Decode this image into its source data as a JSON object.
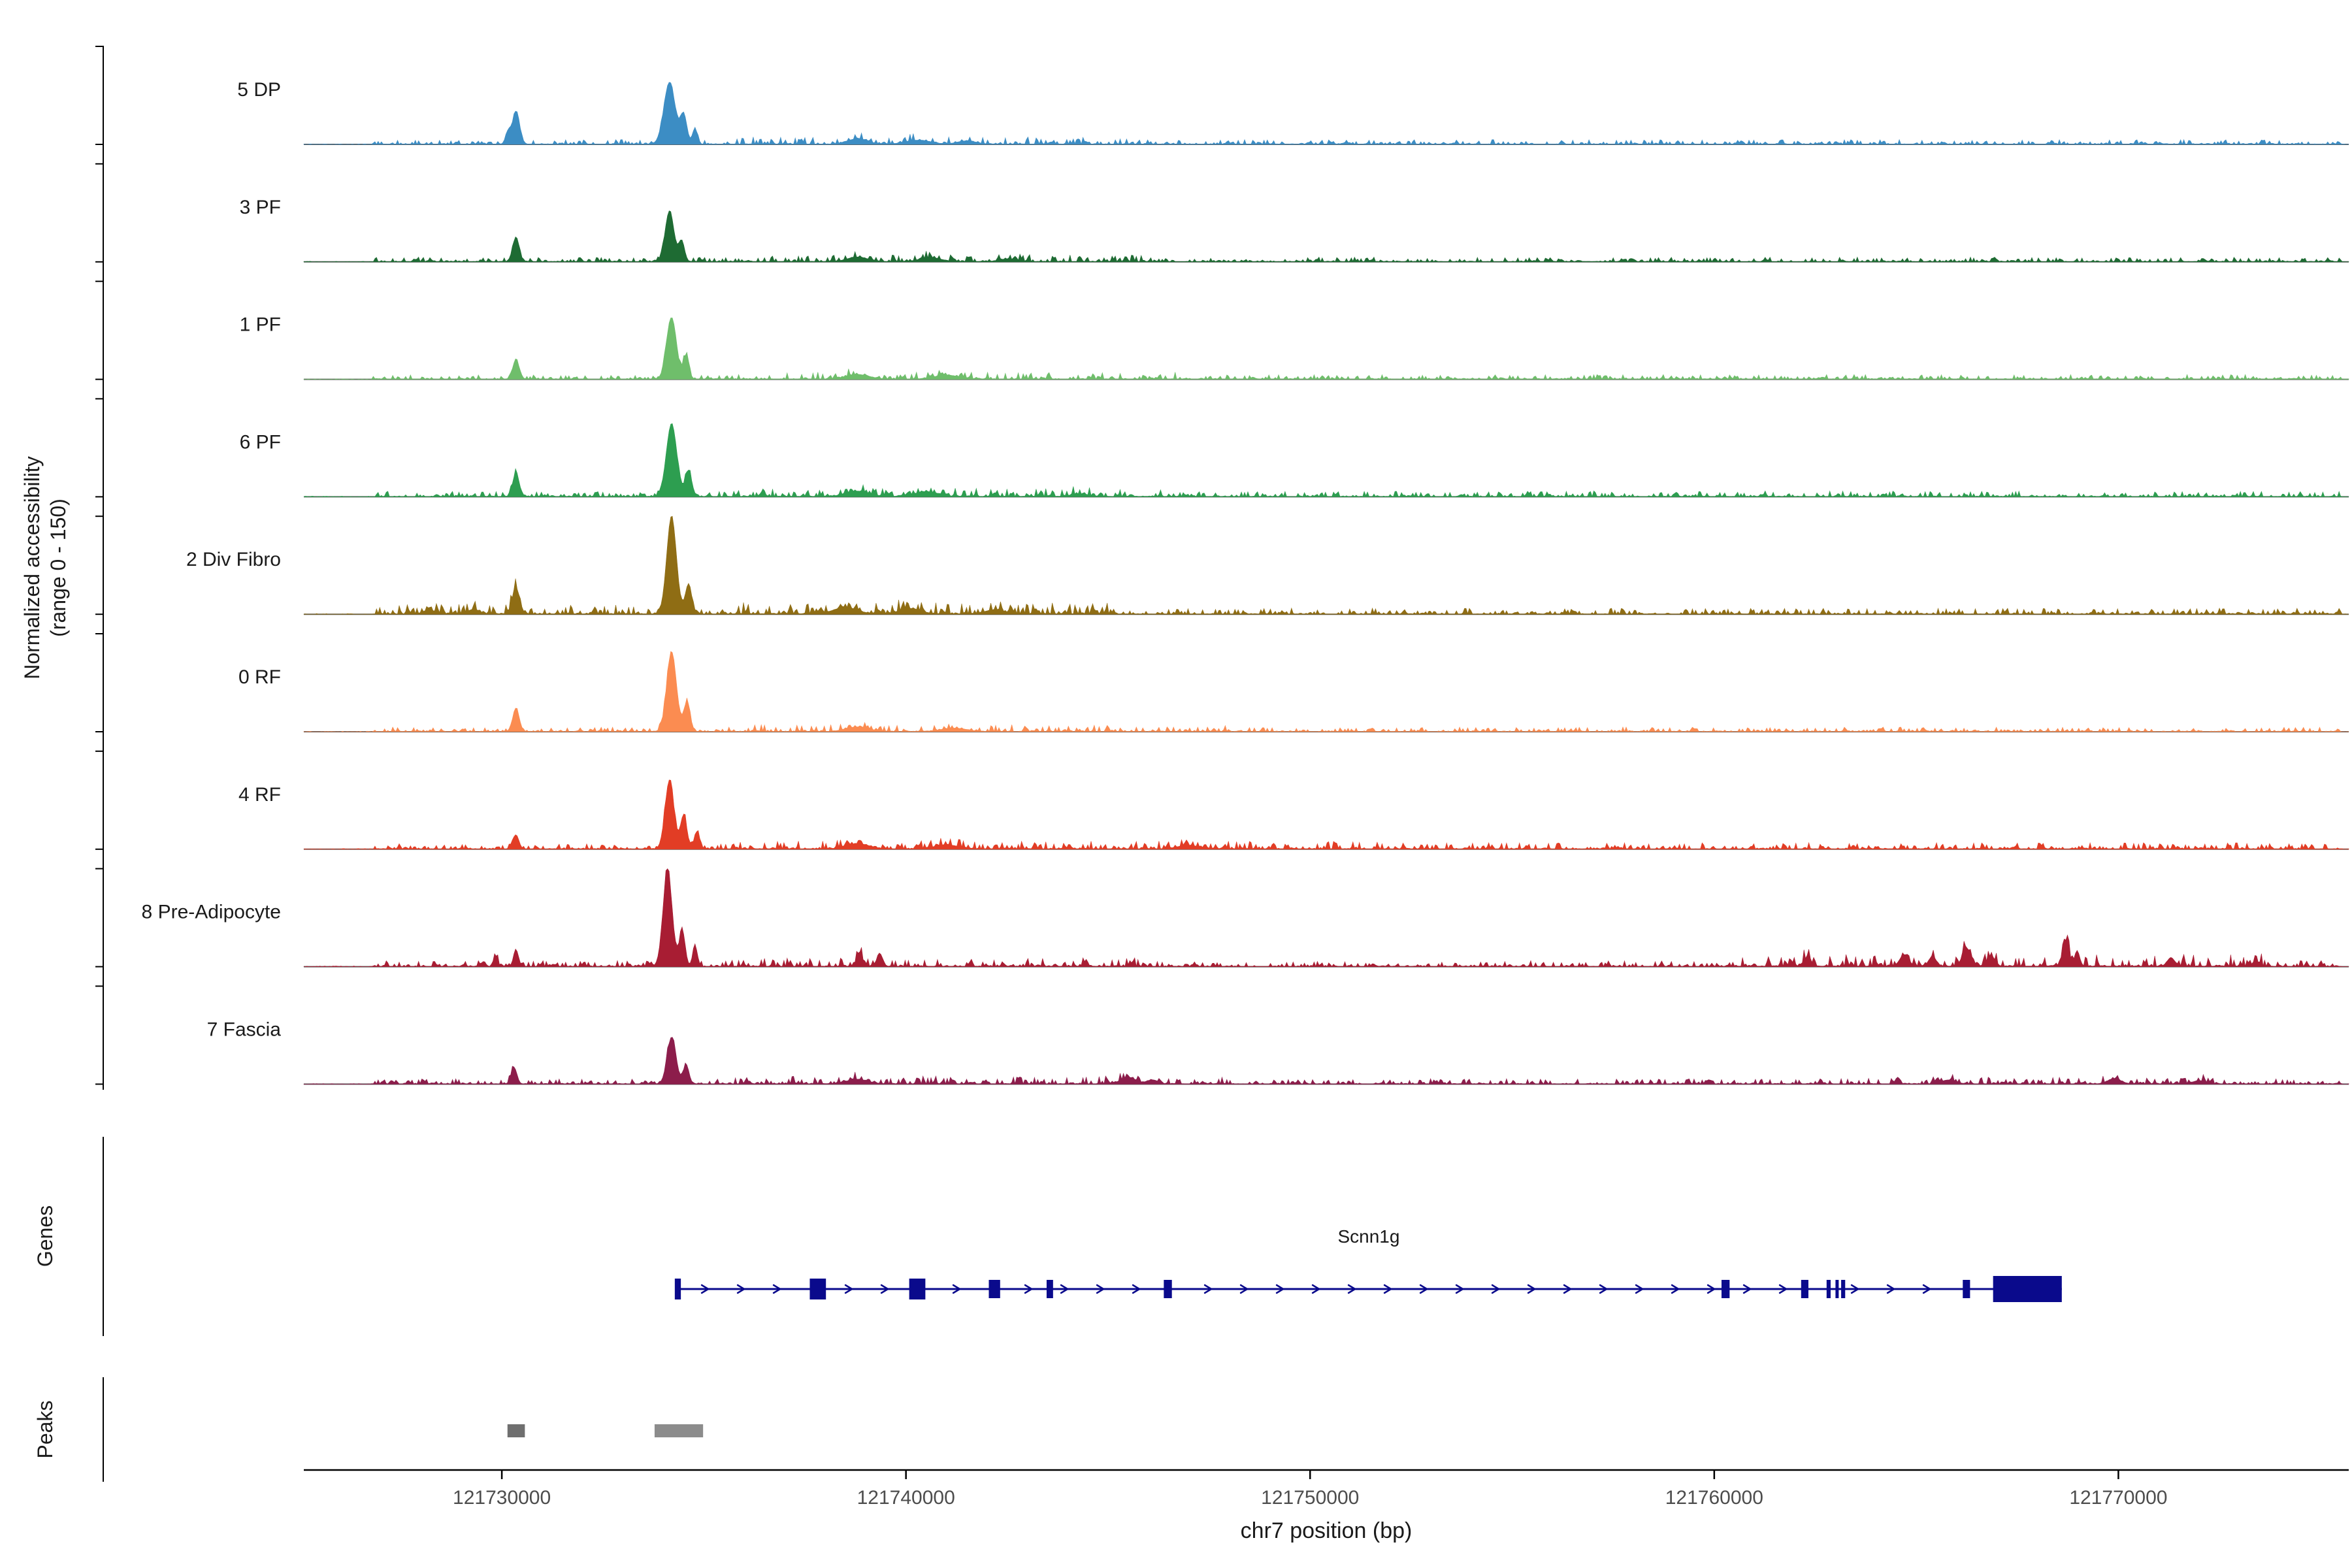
{
  "figure": {
    "background": "#ffffff",
    "axis_color": "#000000",
    "baseline_color": "#5a5a5a",
    "tick_label_color": "#4d4d4d",
    "label_color": "#1a1a1a"
  },
  "chart_data": {
    "type": "area",
    "subtype": "genome-coverage-tracks",
    "region": "chr7:121725100-121775700",
    "xlim": [
      121725100,
      121775700
    ],
    "x_ticks": [
      121730000,
      121740000,
      121750000,
      121760000,
      121770000
    ],
    "xlabel": "chr7 position (bp)",
    "ylabel_line1": "Normalized accessibility",
    "ylabel_line2": "(range 0 - 150)",
    "y_range": [
      0,
      150
    ],
    "noise_start": 121726800,
    "noise_end": 121775500,
    "tracks": [
      {
        "label": "5 DP",
        "color": "#3C8DC4",
        "noise": {
          "level": 7,
          "regions": [
            [
              121735500,
              121745500,
              1.6
            ]
          ]
        },
        "peaks": [
          [
            121730150,
            60,
            18
          ],
          [
            121730350,
            90,
            50
          ],
          [
            121734150,
            140,
            95
          ],
          [
            121734500,
            80,
            45
          ],
          [
            121734780,
            60,
            24
          ],
          [
            121738800,
            250,
            8
          ],
          [
            121740300,
            300,
            6
          ],
          [
            121741500,
            220,
            5
          ]
        ]
      },
      {
        "label": "3 PF",
        "color": "#1E6B33",
        "noise": {
          "level": 7,
          "regions": [
            [
              121735500,
              121746000,
              1.5
            ]
          ]
        },
        "peaks": [
          [
            121730350,
            80,
            38
          ],
          [
            121734150,
            110,
            78
          ],
          [
            121734450,
            70,
            32
          ],
          [
            121738800,
            250,
            7
          ],
          [
            121740600,
            260,
            6
          ],
          [
            121742500,
            200,
            4
          ]
        ]
      },
      {
        "label": "1 PF",
        "color": "#6FBE6B",
        "noise": {
          "level": 7,
          "regions": [
            [
              121735500,
              121747000,
              1.5
            ]
          ]
        },
        "peaks": [
          [
            121730350,
            80,
            30
          ],
          [
            121734200,
            120,
            95
          ],
          [
            121734560,
            70,
            36
          ],
          [
            121738800,
            280,
            7
          ],
          [
            121741000,
            300,
            6
          ]
        ]
      },
      {
        "label": "6 PF",
        "color": "#2D9E50",
        "noise": {
          "level": 8,
          "regions": [
            [
              121735500,
              121747000,
              1.6
            ],
            [
              121755000,
              121770000,
              1.1
            ]
          ]
        },
        "peaks": [
          [
            121730350,
            80,
            36
          ],
          [
            121734200,
            130,
            112
          ],
          [
            121734620,
            80,
            40
          ],
          [
            121738800,
            280,
            8
          ],
          [
            121740500,
            300,
            7
          ],
          [
            121744300,
            220,
            4
          ]
        ]
      },
      {
        "label": "2 Div Fibro",
        "color": "#8F6D14",
        "noise": {
          "level": 9,
          "regions": [
            [
              121726800,
              121733500,
              1.6
            ],
            [
              121735500,
              121745000,
              1.9
            ]
          ]
        },
        "peaks": [
          [
            121728200,
            140,
            6
          ],
          [
            121729300,
            140,
            7
          ],
          [
            121730350,
            90,
            40
          ],
          [
            121734200,
            120,
            150
          ],
          [
            121734620,
            80,
            46
          ],
          [
            121738500,
            280,
            10
          ],
          [
            121740100,
            260,
            8
          ],
          [
            121742200,
            240,
            6
          ]
        ]
      },
      {
        "label": "0 RF",
        "color": "#FB8C51",
        "noise": {
          "level": 7,
          "regions": [
            [
              121735500,
              121748000,
              1.5
            ]
          ]
        },
        "peaks": [
          [
            121730350,
            80,
            36
          ],
          [
            121734200,
            120,
            122
          ],
          [
            121734580,
            80,
            44
          ],
          [
            121738800,
            280,
            7
          ],
          [
            121741200,
            300,
            5
          ]
        ]
      },
      {
        "label": "4 RF",
        "color": "#E23D25",
        "noise": {
          "level": 8,
          "regions": [
            [
              121735500,
              121752000,
              1.5
            ],
            [
              121752000,
              121775000,
              1.2
            ]
          ]
        },
        "peaks": [
          [
            121730350,
            70,
            22
          ],
          [
            121734150,
            110,
            106
          ],
          [
            121734500,
            80,
            52
          ],
          [
            121734820,
            60,
            26
          ],
          [
            121738800,
            280,
            8
          ],
          [
            121741000,
            300,
            6
          ],
          [
            121747000,
            280,
            5
          ]
        ]
      },
      {
        "label": "8 Pre-Adipocyte",
        "color": "#A81D33",
        "noise": {
          "level": 9,
          "regions": [
            [
              121735500,
              121746000,
              1.5
            ],
            [
              121760500,
              121773800,
              2.0
            ]
          ]
        },
        "peaks": [
          [
            121729850,
            50,
            16
          ],
          [
            121730350,
            60,
            26
          ],
          [
            121734100,
            110,
            150
          ],
          [
            121734460,
            70,
            56
          ],
          [
            121734780,
            60,
            30
          ],
          [
            121738850,
            70,
            22
          ],
          [
            121739350,
            70,
            20
          ],
          [
            121762300,
            90,
            13
          ],
          [
            121764700,
            110,
            17
          ],
          [
            121765400,
            90,
            15
          ],
          [
            121766250,
            110,
            27
          ],
          [
            121766850,
            90,
            16
          ],
          [
            121768700,
            80,
            40
          ],
          [
            121768980,
            60,
            24
          ],
          [
            121771300,
            90,
            13
          ],
          [
            121773400,
            70,
            9
          ]
        ]
      },
      {
        "label": "7 Fascia",
        "color": "#8C1D4B",
        "noise": {
          "level": 8,
          "regions": [
            [
              121735500,
              121748000,
              1.5
            ],
            [
              121763000,
              121772500,
              1.3
            ]
          ]
        },
        "peaks": [
          [
            121730300,
            70,
            26
          ],
          [
            121734200,
            110,
            72
          ],
          [
            121734560,
            70,
            30
          ],
          [
            121738800,
            240,
            7
          ],
          [
            121745500,
            180,
            10
          ],
          [
            121746100,
            140,
            6
          ],
          [
            121765800,
            180,
            6
          ],
          [
            121769900,
            160,
            8
          ],
          [
            121772000,
            160,
            5
          ]
        ]
      }
    ],
    "gene": {
      "name": "Scnn1g",
      "color": "#0A0A8C",
      "start": 121734300,
      "end": 121768600,
      "strand": "+",
      "exons": [
        [
          121734280,
          121734430,
          32
        ],
        [
          121737620,
          121738020,
          32
        ],
        [
          121740080,
          121740480,
          32
        ],
        [
          121742050,
          121742330,
          28
        ],
        [
          121743480,
          121743640,
          28
        ],
        [
          121746380,
          121746580,
          28
        ],
        [
          121760180,
          121760380,
          28
        ],
        [
          121762150,
          121762330,
          28
        ],
        [
          121762780,
          121762880,
          28
        ],
        [
          121763000,
          121763080,
          28
        ],
        [
          121763140,
          121763240,
          28
        ],
        [
          121766150,
          121766330,
          28
        ],
        [
          121766900,
          121768600,
          40
        ]
      ]
    },
    "genes_section_label": "Genes",
    "peaks_section_label": "Peaks",
    "peak_boxes": [
      {
        "start": 121730140,
        "end": 121730570,
        "color": "#6f6f6f"
      },
      {
        "start": 121733780,
        "end": 121734980,
        "color": "#8c8c8c"
      }
    ]
  }
}
